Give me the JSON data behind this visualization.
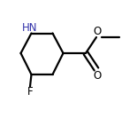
{
  "background_color": "#ffffff",
  "line_color": "#000000",
  "nh_color": "#3333aa",
  "f_color": "#000000",
  "o_color": "#000000",
  "nh_label": "HN",
  "f_label": "F",
  "o_label": "O",
  "o2_label": "O",
  "figsize": [
    1.55,
    1.5
  ],
  "dpi": 100
}
